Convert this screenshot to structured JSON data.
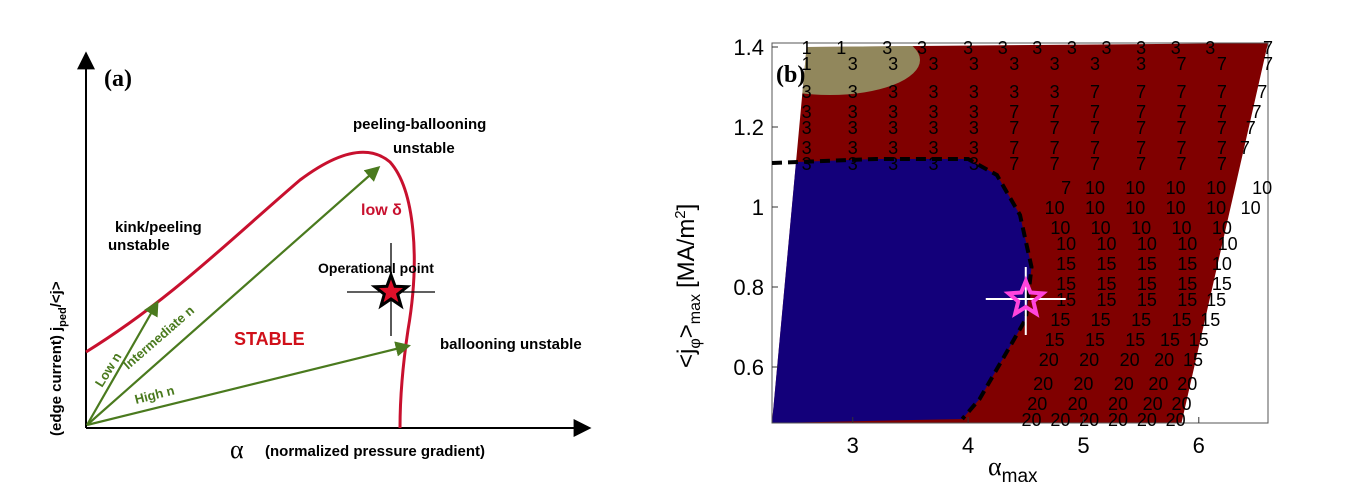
{
  "chart_data": [
    {
      "type": "diagram",
      "panel_label": "(a)",
      "xlabel_symbol": "α",
      "xlabel": "(normalized pressure gradient)",
      "ylabel_prefix": "(edge current) j",
      "ylabel_sub": "ped",
      "ylabel_suffix": "/<j>",
      "region_labels": {
        "kink_line1": "kink/peeling",
        "kink_line2": "unstable",
        "pb_line1": "peeling-ballooning",
        "pb_line2": "unstable",
        "stable": "STABLE",
        "ballooning": "ballooning unstable",
        "low_delta": "low δ",
        "operational_point": "Operational point"
      },
      "arrows": [
        "Low n",
        "Intermediate n",
        "High n"
      ],
      "colors": {
        "boundary": "#c8102e",
        "arrow": "#4a7a1e",
        "stable_text": "#d0101a"
      }
    },
    {
      "type": "heatmap",
      "panel_label": "(b)",
      "xlabel_base": "α",
      "xlabel_sub": "max",
      "ylabel_base": "<j",
      "ylabel_sub1": "φ",
      "ylabel_mid": ">",
      "ylabel_sub2": "max",
      "ylabel_unit": "[MA/m",
      "ylabel_unit_sup": "2",
      "ylabel_unit_end": "]",
      "xlim": [
        2.3,
        6.6
      ],
      "ylim": [
        0.46,
        1.41
      ],
      "xticks": [
        "3",
        "4",
        "5",
        "6"
      ],
      "yticks": [
        "0.6",
        "0.8",
        "1",
        "1.2",
        "1.4"
      ],
      "colormap": "jet",
      "operating_point": {
        "x": 4.5,
        "y": 0.77
      },
      "stability_boundary": [
        [
          2.3,
          1.11
        ],
        [
          3.2,
          1.12
        ],
        [
          4.0,
          1.12
        ],
        [
          4.25,
          1.08
        ],
        [
          4.45,
          0.98
        ],
        [
          4.55,
          0.85
        ],
        [
          4.5,
          0.72
        ],
        [
          4.3,
          0.62
        ],
        [
          4.1,
          0.52
        ],
        [
          3.95,
          0.47
        ]
      ],
      "cell_labels": [
        {
          "y": 1.4,
          "xs": [
            2.6,
            2.9,
            3.3,
            3.6,
            4.0,
            4.3,
            4.6,
            4.9,
            5.2,
            5.5,
            5.8,
            6.1
          ],
          "v": [
            "1",
            "1",
            "3",
            "3",
            "3",
            "3",
            "3",
            "3",
            "3",
            "3",
            "3",
            "3"
          ]
        },
        {
          "y": 1.4,
          "xs": [
            6.6
          ],
          "v": [
            "7"
          ]
        },
        {
          "y": 1.36,
          "xs": [
            2.6,
            3.0,
            3.35,
            3.7,
            4.05,
            4.4,
            4.75,
            5.1,
            5.5,
            5.85,
            6.2,
            6.6
          ],
          "v": [
            "1",
            "3",
            "3",
            "3",
            "3",
            "3",
            "3",
            "3",
            "3",
            "7",
            "7",
            "7"
          ]
        },
        {
          "y": 1.29,
          "xs": [
            2.6,
            3.0,
            3.35,
            3.7,
            4.05,
            4.4,
            4.75,
            5.1,
            5.5,
            5.85,
            6.2,
            6.55
          ],
          "v": [
            "3",
            "3",
            "3",
            "3",
            "3",
            "3",
            "3",
            "7",
            "7",
            "7",
            "7",
            "7"
          ]
        },
        {
          "y": 1.24,
          "xs": [
            2.6,
            3.0,
            3.35,
            3.7,
            4.05,
            4.4,
            4.75,
            5.1,
            5.5,
            5.85,
            6.2,
            6.5
          ],
          "v": [
            "3",
            "3",
            "3",
            "3",
            "3",
            "7",
            "7",
            "7",
            "7",
            "7",
            "7",
            "7"
          ]
        },
        {
          "y": 1.2,
          "xs": [
            2.6,
            3.0,
            3.35,
            3.7,
            4.05,
            4.4,
            4.75,
            5.1,
            5.5,
            5.85,
            6.2,
            6.45
          ],
          "v": [
            "3",
            "3",
            "3",
            "3",
            "3",
            "7",
            "7",
            "7",
            "7",
            "7",
            "7",
            "7"
          ]
        },
        {
          "y": 1.15,
          "xs": [
            2.6,
            3.0,
            3.35,
            3.7,
            4.05,
            4.4,
            4.75,
            5.1,
            5.5,
            5.85,
            6.2,
            6.4
          ],
          "v": [
            "3",
            "3",
            "3",
            "3",
            "3",
            "7",
            "7",
            "7",
            "7",
            "7",
            "7",
            "7"
          ]
        },
        {
          "y": 1.11,
          "xs": [
            2.6,
            3.0,
            3.35,
            3.7,
            4.05,
            4.4,
            4.75,
            5.1,
            5.5,
            5.85,
            6.2
          ],
          "v": [
            "3",
            "3",
            "3",
            "3",
            "3",
            "7",
            "7",
            "7",
            "7",
            "7",
            "7"
          ]
        },
        {
          "y": 1.05,
          "xs": [
            4.85,
            5.1,
            5.45,
            5.8,
            6.15
          ],
          "v": [
            "7",
            "10",
            "10",
            "10",
            "10"
          ]
        },
        {
          "y": 1.05,
          "xs": [
            6.55
          ],
          "v": [
            "10"
          ]
        },
        {
          "y": 1.0,
          "xs": [
            4.75,
            5.1,
            5.45,
            5.8,
            6.15,
            6.45
          ],
          "v": [
            "10",
            "10",
            "10",
            "10",
            "10",
            "10"
          ]
        },
        {
          "y": 0.95,
          "xs": [
            4.8,
            5.15,
            5.5,
            5.85,
            6.2
          ],
          "v": [
            "10",
            "10",
            "10",
            "10",
            "10"
          ]
        },
        {
          "y": 0.91,
          "xs": [
            4.85,
            5.2,
            5.55,
            5.9,
            6.25
          ],
          "v": [
            "10",
            "10",
            "10",
            "10",
            "10"
          ]
        },
        {
          "y": 0.86,
          "xs": [
            4.85,
            5.2,
            5.55,
            5.9,
            6.2
          ],
          "v": [
            "15",
            "15",
            "15",
            "15",
            "10"
          ]
        },
        {
          "y": 0.81,
          "xs": [
            4.85,
            5.2,
            5.55,
            5.9,
            6.2
          ],
          "v": [
            "15",
            "15",
            "15",
            "15",
            "15"
          ]
        },
        {
          "y": 0.77,
          "xs": [
            4.85,
            5.2,
            5.55,
            5.9,
            6.15
          ],
          "v": [
            "15",
            "15",
            "15",
            "15",
            "15"
          ]
        },
        {
          "y": 0.72,
          "xs": [
            4.8,
            5.15,
            5.5,
            5.85,
            6.1
          ],
          "v": [
            "15",
            "15",
            "15",
            "15",
            "15"
          ]
        },
        {
          "y": 0.67,
          "xs": [
            4.75,
            5.1,
            5.45,
            5.75,
            6.0
          ],
          "v": [
            "15",
            "15",
            "15",
            "15",
            "15"
          ]
        },
        {
          "y": 0.62,
          "xs": [
            4.7,
            5.05,
            5.4,
            5.7,
            5.95
          ],
          "v": [
            "20",
            "20",
            "20",
            "20",
            "15"
          ]
        },
        {
          "y": 0.56,
          "xs": [
            4.65,
            5.0,
            5.35,
            5.65,
            5.9
          ],
          "v": [
            "20",
            "20",
            "20",
            "20",
            "20"
          ]
        },
        {
          "y": 0.51,
          "xs": [
            4.6,
            4.95,
            5.3,
            5.6,
            5.85
          ],
          "v": [
            "20",
            "20",
            "20",
            "20",
            "20"
          ]
        },
        {
          "y": 0.47,
          "xs": [
            4.55,
            4.8,
            5.05,
            5.3,
            5.55,
            5.8
          ],
          "v": [
            "20",
            "20",
            "20",
            "20",
            "20",
            "20"
          ]
        }
      ]
    }
  ]
}
